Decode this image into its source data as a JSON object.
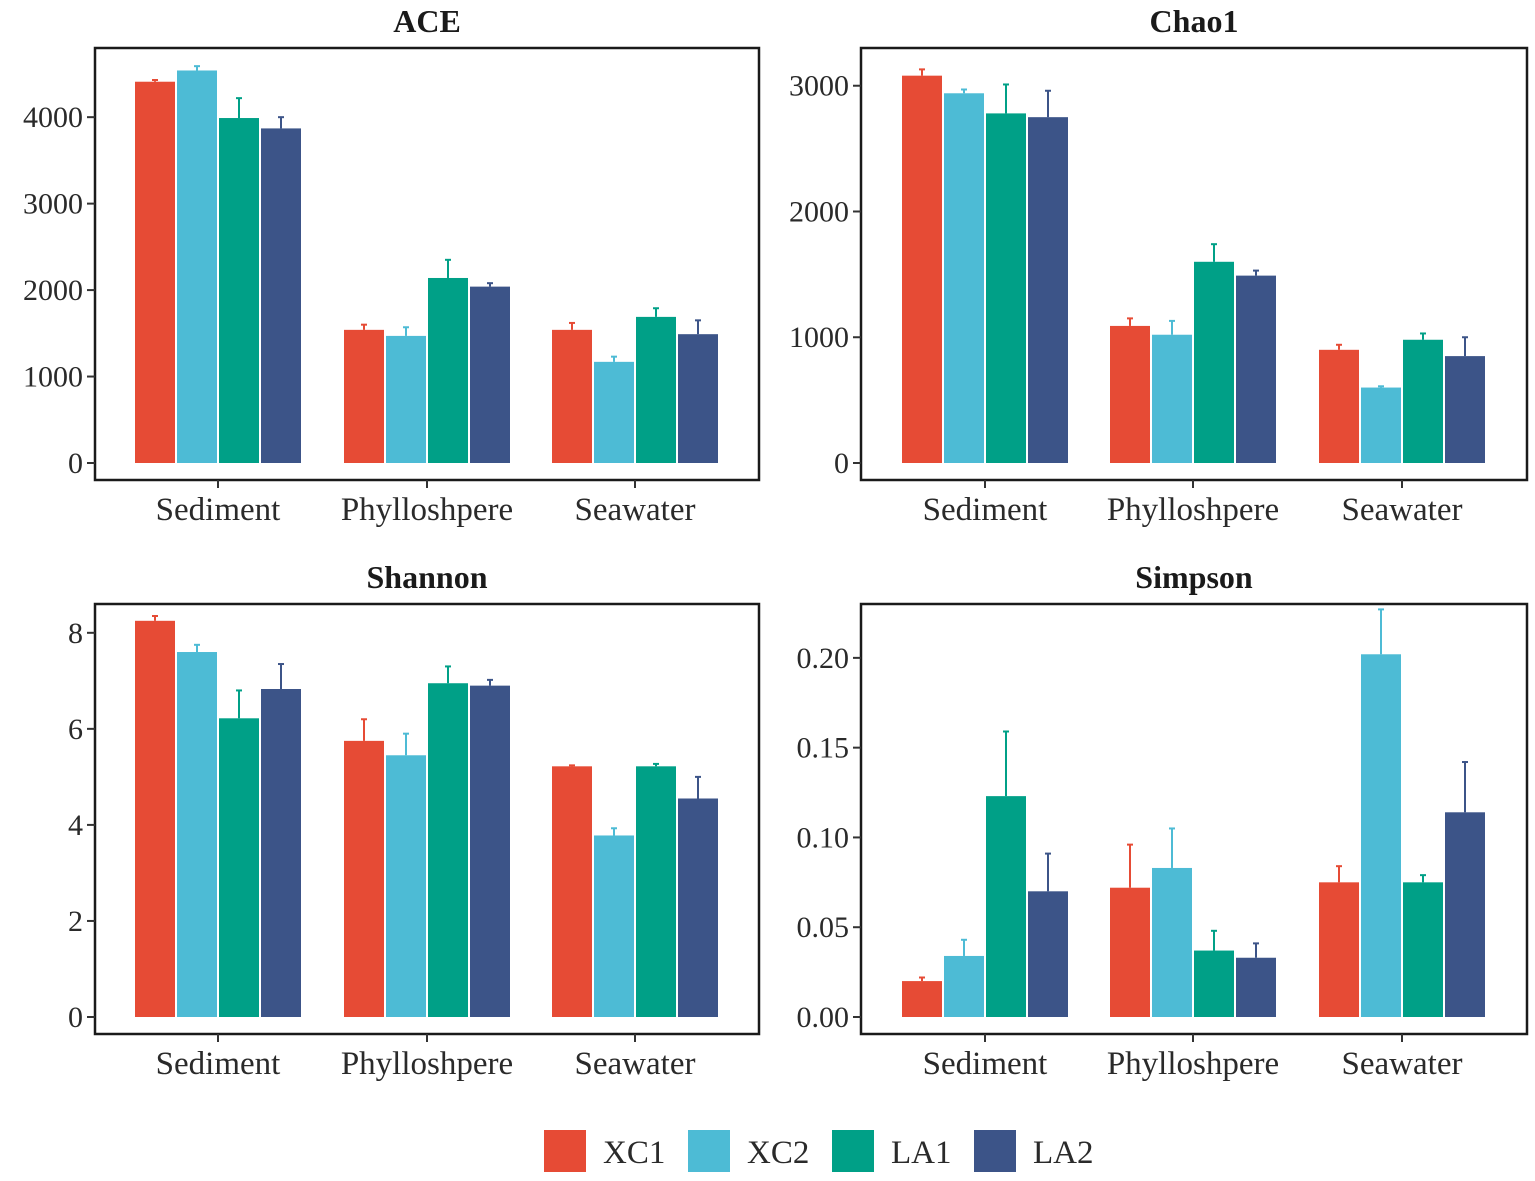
{
  "chart_data": [
    {
      "type": "bar",
      "title": "ACE",
      "categories": [
        "Sediment",
        "Phylloshpere",
        "Seawater"
      ],
      "ylim": [
        0,
        4800
      ],
      "yticks": [
        0,
        1000,
        2000,
        3000,
        4000
      ],
      "ytick_labels": [
        "0",
        "1000",
        "2000",
        "3000",
        "4000"
      ],
      "series": [
        {
          "name": "XC1",
          "values": [
            4410,
            1540,
            1540
          ],
          "errors": [
            20,
            60,
            80
          ]
        },
        {
          "name": "XC2",
          "values": [
            4540,
            1470,
            1170
          ],
          "errors": [
            50,
            100,
            60
          ]
        },
        {
          "name": "LA1",
          "values": [
            3990,
            2140,
            1690
          ],
          "errors": [
            230,
            210,
            100
          ]
        },
        {
          "name": "LA2",
          "values": [
            3870,
            2040,
            1490
          ],
          "errors": [
            130,
            40,
            160
          ]
        }
      ]
    },
    {
      "type": "bar",
      "title": "Chao1",
      "categories": [
        "Sediment",
        "Phylloshpere",
        "Seawater"
      ],
      "ylim": [
        0,
        3300
      ],
      "yticks": [
        0,
        1000,
        2000,
        3000
      ],
      "ytick_labels": [
        "0",
        "1000",
        "2000",
        "3000"
      ],
      "series": [
        {
          "name": "XC1",
          "values": [
            3080,
            1090,
            900
          ],
          "errors": [
            50,
            60,
            40
          ]
        },
        {
          "name": "XC2",
          "values": [
            2940,
            1020,
            600
          ],
          "errors": [
            30,
            110,
            10
          ]
        },
        {
          "name": "LA1",
          "values": [
            2780,
            1600,
            980
          ],
          "errors": [
            230,
            140,
            50
          ]
        },
        {
          "name": "LA2",
          "values": [
            2750,
            1490,
            850
          ],
          "errors": [
            210,
            40,
            150
          ]
        }
      ]
    },
    {
      "type": "bar",
      "title": "Shannon",
      "categories": [
        "Sediment",
        "Phylloshpere",
        "Seawater"
      ],
      "ylim": [
        0,
        8.6
      ],
      "yticks": [
        0,
        2,
        4,
        6,
        8
      ],
      "ytick_labels": [
        "0",
        "2",
        "4",
        "6",
        "8"
      ],
      "series": [
        {
          "name": "XC1",
          "values": [
            8.25,
            5.75,
            5.22
          ],
          "errors": [
            0.1,
            0.45,
            0.02
          ]
        },
        {
          "name": "XC2",
          "values": [
            7.6,
            5.45,
            3.78
          ],
          "errors": [
            0.15,
            0.45,
            0.15
          ]
        },
        {
          "name": "LA1",
          "values": [
            6.22,
            6.95,
            5.22
          ],
          "errors": [
            0.58,
            0.35,
            0.05
          ]
        },
        {
          "name": "LA2",
          "values": [
            6.83,
            6.9,
            4.55
          ],
          "errors": [
            0.52,
            0.12,
            0.45
          ]
        }
      ]
    },
    {
      "type": "bar",
      "title": "Simpson",
      "categories": [
        "Sediment",
        "Phylloshpere",
        "Seawater"
      ],
      "ylim": [
        0,
        0.23
      ],
      "yticks": [
        0,
        0.05,
        0.1,
        0.15,
        0.2
      ],
      "ytick_labels": [
        "0.00",
        "0.05",
        "0.10",
        "0.15",
        "0.20"
      ],
      "series": [
        {
          "name": "XC1",
          "values": [
            0.02,
            0.072,
            0.075
          ],
          "errors": [
            0.002,
            0.024,
            0.009
          ]
        },
        {
          "name": "XC2",
          "values": [
            0.034,
            0.083,
            0.202
          ],
          "errors": [
            0.009,
            0.022,
            0.025
          ]
        },
        {
          "name": "LA1",
          "values": [
            0.123,
            0.037,
            0.075
          ],
          "errors": [
            0.036,
            0.011,
            0.004
          ]
        },
        {
          "name": "LA2",
          "values": [
            0.07,
            0.033,
            0.114
          ],
          "errors": [
            0.021,
            0.008,
            0.028
          ]
        }
      ]
    }
  ],
  "legend": {
    "position": "bottom",
    "entries": [
      {
        "name": "XC1",
        "color": "#E64B35"
      },
      {
        "name": "XC2",
        "color": "#4DBBD5"
      },
      {
        "name": "LA1",
        "color": "#00A087"
      },
      {
        "name": "LA2",
        "color": "#3C5488"
      }
    ]
  }
}
